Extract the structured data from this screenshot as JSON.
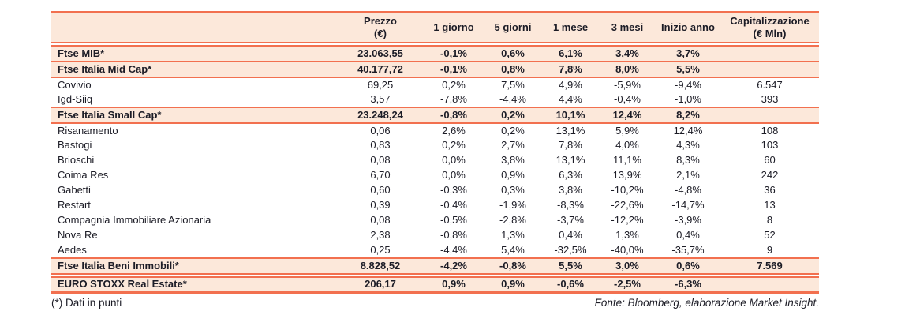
{
  "colors": {
    "accent_rule": "#F2704F",
    "band_background": "#FCE8DA",
    "text": "#1C1C26"
  },
  "columns": [
    {
      "key": "name",
      "label": "",
      "sub": ""
    },
    {
      "key": "prezzo",
      "label": "Prezzo",
      "sub": "(€)"
    },
    {
      "key": "1-giorno",
      "label": "1 giorno",
      "sub": ""
    },
    {
      "key": "5-giorni",
      "label": "5 giorni",
      "sub": ""
    },
    {
      "key": "1-mese",
      "label": "1 mese",
      "sub": ""
    },
    {
      "key": "3-mesi",
      "label": "3 mesi",
      "sub": ""
    },
    {
      "key": "inizio-anno",
      "label": "Inizio anno",
      "sub": ""
    },
    {
      "key": "capitalizzazione",
      "label": "Capitalizzazione",
      "sub": "(€ Mln)"
    }
  ],
  "rows": [
    {
      "name": "Ftse MIB*",
      "type": "index",
      "section_break_before": true,
      "values": [
        "23.063,55",
        "-0,1%",
        "0,6%",
        "6,1%",
        "3,4%",
        "3,7%",
        ""
      ]
    },
    {
      "name": "Ftse Italia Mid Cap*",
      "type": "index",
      "section_break_before": false,
      "values": [
        "40.177,72",
        "-0,1%",
        "0,8%",
        "7,8%",
        "8,0%",
        "5,5%",
        ""
      ]
    },
    {
      "name": "Covivio",
      "type": "stock",
      "section_break_before": false,
      "values": [
        "69,25",
        "0,2%",
        "7,5%",
        "4,9%",
        "-5,9%",
        "-9,4%",
        "6.547"
      ]
    },
    {
      "name": "Igd-Siiq",
      "type": "stock",
      "section_break_before": false,
      "values": [
        "3,57",
        "-7,8%",
        "-4,4%",
        "4,4%",
        "-0,4%",
        "-1,0%",
        "393"
      ]
    },
    {
      "name": "Ftse Italia Small Cap*",
      "type": "index",
      "section_break_before": false,
      "values": [
        "23.248,24",
        "-0,8%",
        "0,2%",
        "10,1%",
        "12,4%",
        "8,2%",
        ""
      ]
    },
    {
      "name": "Risanamento",
      "type": "stock",
      "section_break_before": false,
      "values": [
        "0,06",
        "2,6%",
        "0,2%",
        "13,1%",
        "5,9%",
        "12,4%",
        "108"
      ]
    },
    {
      "name": "Bastogi",
      "type": "stock",
      "section_break_before": false,
      "values": [
        "0,83",
        "0,2%",
        "2,7%",
        "7,8%",
        "4,0%",
        "4,3%",
        "103"
      ]
    },
    {
      "name": "Brioschi",
      "type": "stock",
      "section_break_before": false,
      "values": [
        "0,08",
        "0,0%",
        "3,8%",
        "13,1%",
        "11,1%",
        "8,3%",
        "60"
      ]
    },
    {
      "name": "Coima Res",
      "type": "stock",
      "section_break_before": false,
      "values": [
        "6,70",
        "0,0%",
        "0,9%",
        "6,3%",
        "13,9%",
        "2,1%",
        "242"
      ]
    },
    {
      "name": "Gabetti",
      "type": "stock",
      "section_break_before": false,
      "values": [
        "0,60",
        "-0,3%",
        "0,3%",
        "3,8%",
        "-10,2%",
        "-4,8%",
        "36"
      ]
    },
    {
      "name": "Restart",
      "type": "stock",
      "section_break_before": false,
      "values": [
        "0,39",
        "-0,4%",
        "-1,9%",
        "-8,3%",
        "-22,6%",
        "-14,7%",
        "13"
      ]
    },
    {
      "name": "Compagnia Immobiliare Azionaria",
      "type": "stock",
      "section_break_before": false,
      "values": [
        "0,08",
        "-0,5%",
        "-2,8%",
        "-3,7%",
        "-12,2%",
        "-3,9%",
        "8"
      ]
    },
    {
      "name": "Nova Re",
      "type": "stock",
      "section_break_before": false,
      "values": [
        "2,38",
        "-0,8%",
        "1,3%",
        "0,4%",
        "1,3%",
        "0,4%",
        "52"
      ]
    },
    {
      "name": "Aedes",
      "type": "stock",
      "section_break_before": false,
      "values": [
        "0,25",
        "-4,4%",
        "5,4%",
        "-32,5%",
        "-40,0%",
        "-35,7%",
        "9"
      ]
    },
    {
      "name": "Ftse Italia Beni Immobili*",
      "type": "index",
      "section_break_before": false,
      "values": [
        "8.828,52",
        "-4,2%",
        "-0,8%",
        "5,5%",
        "3,0%",
        "0,6%",
        "7.569"
      ]
    },
    {
      "name": "EURO STOXX Real Estate*",
      "type": "index",
      "section_break_before": true,
      "values": [
        "206,17",
        "0,9%",
        "0,9%",
        "-0,6%",
        "-2,5%",
        "-6,3%",
        ""
      ]
    }
  ],
  "footnote": "(*) Dati in punti",
  "source": "Fonte: Bloomberg, elaborazione Market Insight."
}
